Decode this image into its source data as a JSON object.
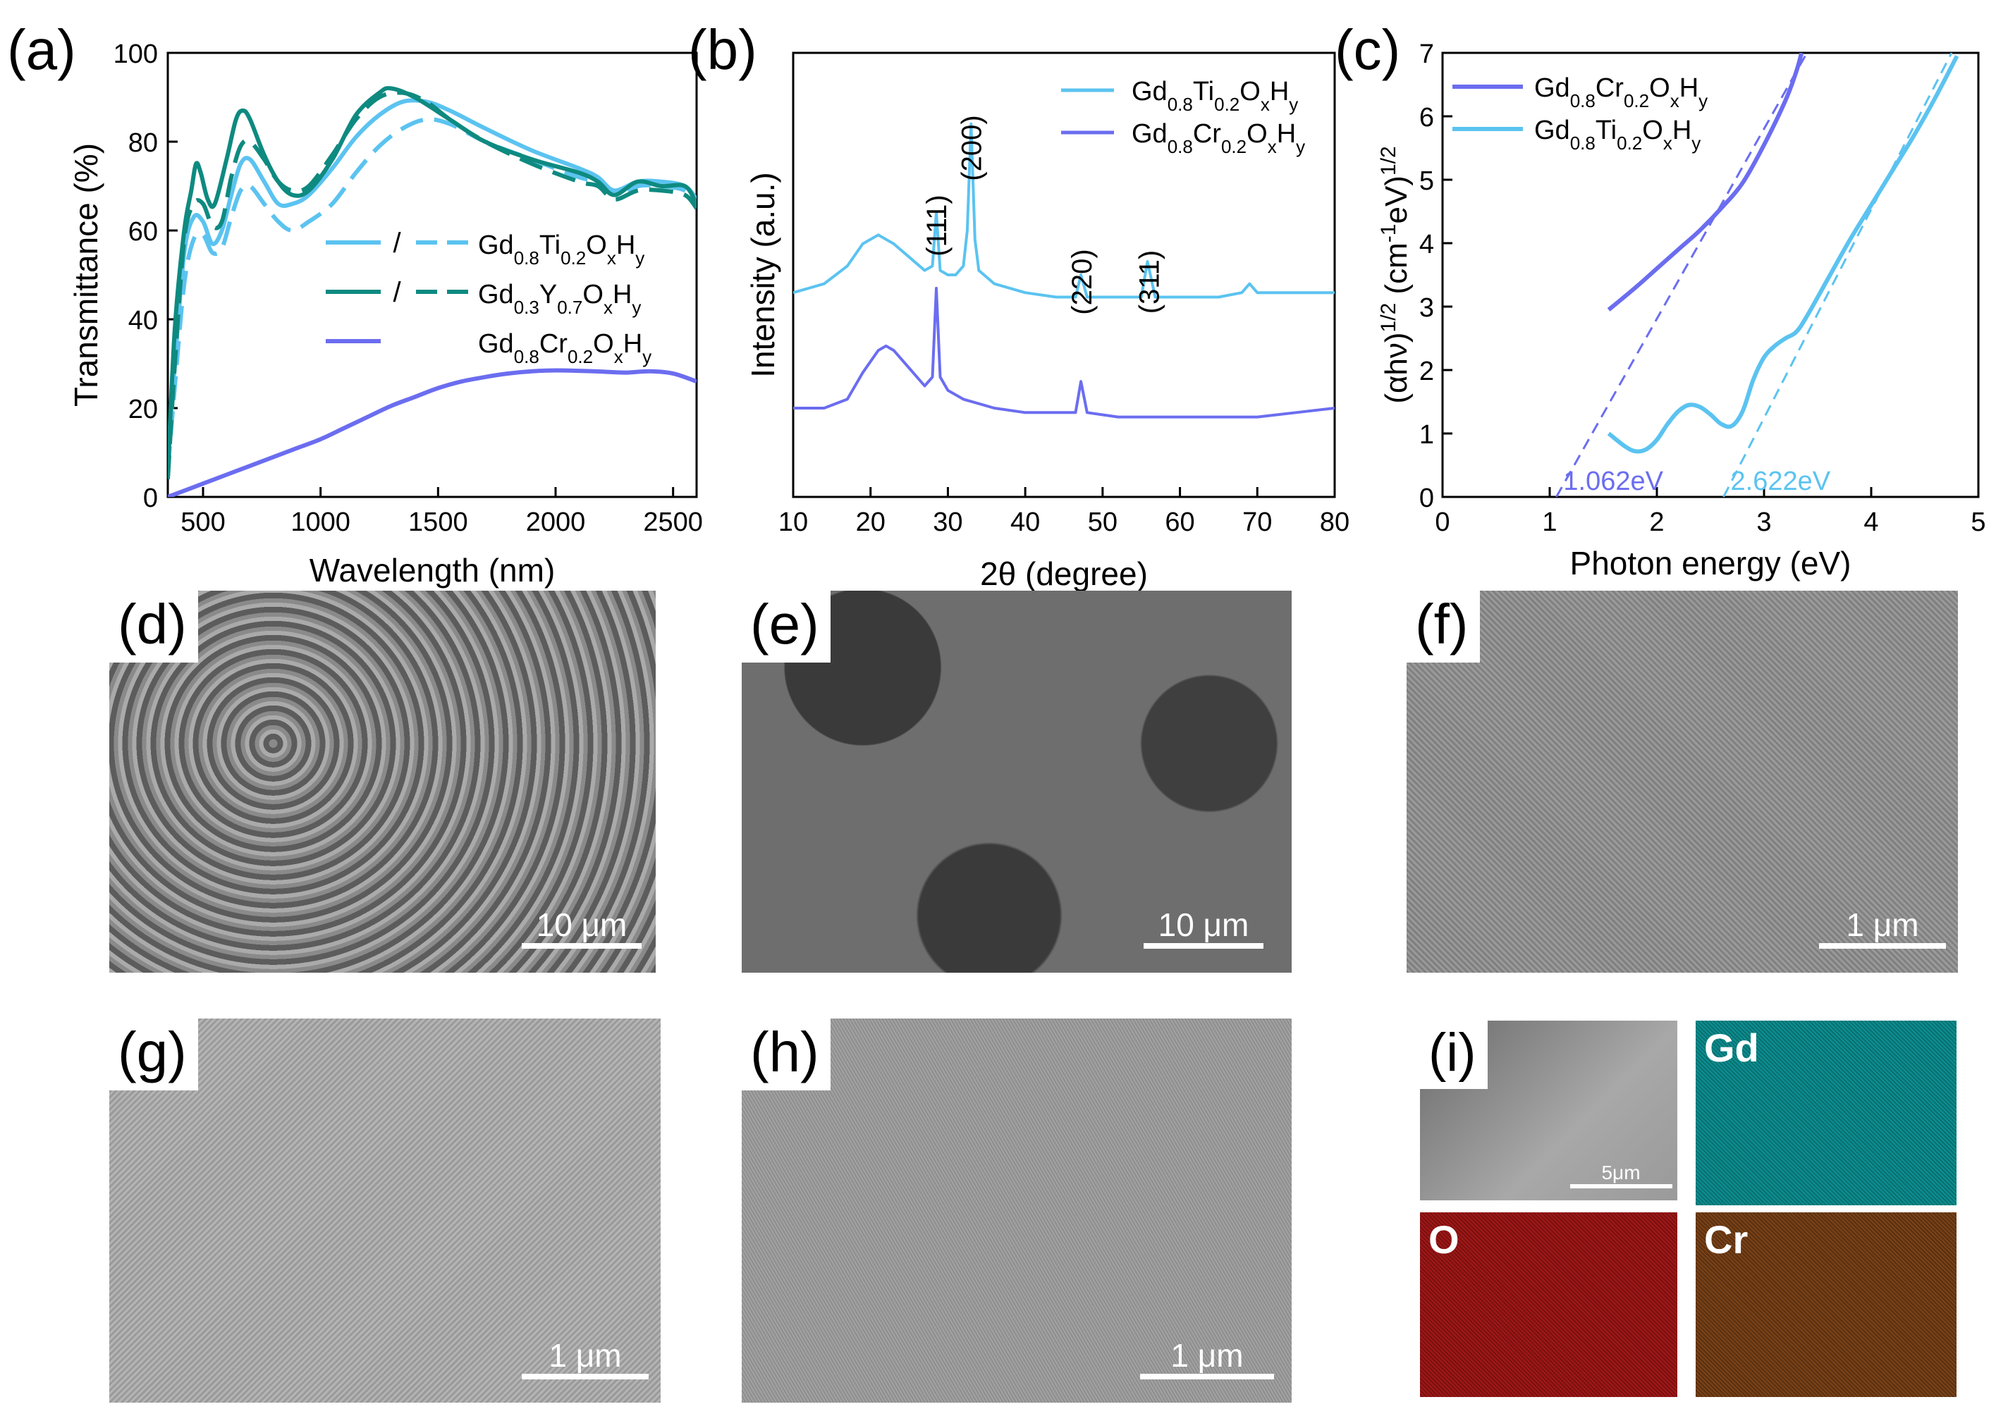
{
  "colors": {
    "light_blue": "#5bc3f0",
    "teal": "#0e8a80",
    "purple": "#6b6df0"
  },
  "panels": {
    "a": {
      "label": "(a)"
    },
    "b": {
      "label": "(b)"
    },
    "c": {
      "label": "(c)"
    },
    "d": {
      "label": "(d)",
      "scale": "10 μm"
    },
    "e": {
      "label": "(e)",
      "scale": "10 μm"
    },
    "f": {
      "label": "(f)",
      "scale": "1 μm"
    },
    "g": {
      "label": "(g)",
      "scale": "1 μm"
    },
    "h": {
      "label": "(h)",
      "scale": "1 μm"
    },
    "i": {
      "label": "(i)",
      "scale": "5μm",
      "maps": [
        "Gd",
        "O",
        "Cr"
      ]
    }
  },
  "chart_data": [
    {
      "id": "a",
      "type": "line",
      "xlabel": "Wavelength (nm)",
      "ylabel": "Transmittance (%)",
      "xlim": [
        350,
        2600
      ],
      "ylim": [
        0,
        100
      ],
      "xticks": [
        "500",
        "1000",
        "1500",
        "2000",
        "2500"
      ],
      "yticks": [
        "0",
        "20",
        "40",
        "60",
        "80",
        "100"
      ],
      "legend": [
        {
          "sub_sample": "Gd0.8Ti0.2OxHy",
          "slash": "/",
          "color": "light_blue"
        },
        {
          "sub_sample": "Gd0.3Y0.7OxHy",
          "slash": "/",
          "color": "teal"
        },
        {
          "sub_sample": "Gd0.8Cr0.2OxHy",
          "color": "purple"
        }
      ],
      "series": [
        {
          "name": "Gd0.8Ti0.2OxHy (solid)",
          "color": "light_blue",
          "dash": false,
          "x": [
            350,
            380,
            420,
            460,
            500,
            540,
            580,
            620,
            660,
            700,
            760,
            820,
            880,
            950,
            1050,
            1150,
            1250,
            1350,
            1450,
            1550,
            1700,
            1900,
            2100,
            2180,
            2250,
            2350,
            2450,
            2550,
            2600
          ],
          "y": [
            8,
            30,
            55,
            63,
            62,
            57,
            60,
            68,
            75,
            76,
            71,
            66,
            66,
            68,
            74,
            81,
            86,
            89,
            89,
            87,
            83,
            78,
            74,
            72,
            69,
            71,
            71,
            70,
            67
          ]
        },
        {
          "name": "Gd0.8Ti0.2OxHy (dashed)",
          "color": "light_blue",
          "dash": true,
          "x": [
            350,
            380,
            420,
            460,
            500,
            540,
            580,
            620,
            660,
            700,
            760,
            820,
            880,
            950,
            1050,
            1150,
            1250,
            1350,
            1450,
            1550,
            1700,
            1900,
            2100,
            2180,
            2250,
            2350,
            2450,
            2550,
            2600
          ],
          "y": [
            6,
            25,
            48,
            58,
            59,
            55,
            56,
            63,
            69,
            70,
            66,
            62,
            60,
            62,
            66,
            73,
            79,
            83,
            85,
            84,
            80,
            76,
            72,
            71,
            68,
            70,
            70,
            69,
            66
          ]
        },
        {
          "name": "Gd0.3Y0.7OxHy (solid)",
          "color": "teal",
          "dash": false,
          "x": [
            350,
            380,
            420,
            450,
            470,
            490,
            520,
            550,
            600,
            640,
            670,
            700,
            760,
            820,
            880,
            950,
            1050,
            1150,
            1250,
            1300,
            1400,
            1550,
            1700,
            1900,
            2100,
            2180,
            2250,
            2350,
            2450,
            2550,
            2600
          ],
          "y": [
            5,
            38,
            60,
            69,
            75,
            73,
            67,
            66,
            76,
            85,
            87,
            85,
            77,
            71,
            68,
            69,
            76,
            86,
            91,
            92,
            90,
            85,
            80,
            76,
            73,
            71,
            68,
            71,
            70,
            70,
            66
          ]
        },
        {
          "name": "Gd0.3Y0.7OxHy (dashed)",
          "color": "teal",
          "dash": true,
          "x": [
            350,
            380,
            420,
            460,
            500,
            540,
            580,
            620,
            660,
            700,
            760,
            820,
            880,
            950,
            1050,
            1150,
            1250,
            1350,
            1450,
            1550,
            1700,
            1900,
            2100,
            2180,
            2250,
            2350,
            2450,
            2550,
            2600
          ],
          "y": [
            4,
            30,
            58,
            66,
            66,
            61,
            62,
            72,
            79,
            80,
            76,
            71,
            69,
            70,
            77,
            85,
            90,
            91,
            89,
            85,
            80,
            75,
            71,
            70,
            67,
            69,
            69,
            68,
            65
          ]
        },
        {
          "name": "Gd0.8Cr0.2OxHy",
          "color": "purple",
          "dash": false,
          "x": [
            350,
            400,
            500,
            600,
            700,
            800,
            900,
            1000,
            1100,
            1200,
            1300,
            1400,
            1500,
            1600,
            1700,
            1800,
            1900,
            2000,
            2100,
            2200,
            2300,
            2400,
            2500,
            2600
          ],
          "y": [
            0,
            1,
            3,
            5,
            7,
            9,
            11,
            13,
            15.5,
            18,
            20.5,
            22.5,
            24.5,
            26,
            27,
            27.8,
            28.3,
            28.5,
            28.4,
            28.2,
            28,
            28.3,
            27.8,
            26
          ]
        }
      ]
    },
    {
      "id": "b",
      "type": "line",
      "xlabel": "2θ (degree)",
      "ylabel": "Intensity (a.u.)",
      "xlim": [
        10,
        80
      ],
      "ylim": [
        0,
        100
      ],
      "xticks": [
        "10",
        "20",
        "30",
        "40",
        "50",
        "60",
        "70",
        "80"
      ],
      "peak_labels": [
        {
          "text": "(111)",
          "x": 28.5
        },
        {
          "text": "(200)",
          "x": 33.0
        },
        {
          "text": "(220)",
          "x": 47.3
        },
        {
          "text": "(311)",
          "x": 56.0
        }
      ],
      "legend": [
        {
          "sub_sample": "Gd0.8Ti0.2OxHy",
          "color": "light_blue"
        },
        {
          "sub_sample": "Gd0.8Cr0.2OxHy",
          "color": "purple"
        }
      ],
      "series": [
        {
          "name": "Gd0.8Ti0.2OxHy",
          "color": "light_blue",
          "x": [
            10,
            14,
            17,
            19,
            21,
            23,
            25,
            27,
            28,
            28.5,
            29,
            30,
            31,
            32,
            32.5,
            33,
            33.5,
            34,
            36,
            40,
            44,
            46.5,
            47.2,
            48,
            52,
            55,
            55.8,
            56.8,
            60,
            65,
            68,
            69,
            70,
            75,
            80
          ],
          "y": [
            46,
            48,
            52,
            57,
            59,
            57,
            54,
            51,
            52,
            64,
            51,
            50,
            50,
            52,
            60,
            84,
            58,
            51,
            48,
            46,
            45,
            45,
            50,
            45,
            45,
            45,
            53,
            45,
            45,
            45,
            46,
            48,
            46,
            46,
            46
          ]
        },
        {
          "name": "Gd0.8Cr0.2OxHy",
          "color": "purple",
          "x": [
            10,
            14,
            17,
            19,
            21,
            22,
            23,
            25,
            27,
            28,
            28.5,
            29,
            30,
            32,
            36,
            40,
            44,
            46.5,
            47.2,
            48,
            52,
            55,
            60,
            65,
            70,
            75,
            80
          ],
          "y": [
            20,
            20,
            22,
            28,
            33,
            34,
            33,
            29,
            25,
            27,
            47,
            27,
            24,
            22,
            20,
            19,
            19,
            19,
            26,
            19,
            18,
            18,
            18,
            18,
            18,
            19,
            20
          ]
        }
      ]
    },
    {
      "id": "c",
      "type": "line",
      "xlabel": "Photon energy (eV)",
      "ylabel_text": "(αhν)^1/2 (cm^-1eV)^1/2",
      "xlim": [
        0,
        5
      ],
      "ylim": [
        0,
        7
      ],
      "xticks": [
        "0",
        "1",
        "2",
        "3",
        "4",
        "5"
      ],
      "yticks": [
        "0",
        "1",
        "2",
        "3",
        "4",
        "5",
        "6",
        "7"
      ],
      "legend": [
        {
          "sub_sample": "Gd0.8Cr0.2OxHy",
          "color": "purple"
        },
        {
          "sub_sample": "Gd0.8Ti0.2OxHy",
          "color": "light_blue"
        }
      ],
      "annotations": [
        {
          "text": "1.062eV",
          "x": 1.062,
          "color": "purple"
        },
        {
          "text": "2.622eV",
          "x": 2.622,
          "color": "light_blue"
        }
      ],
      "fit_lines": [
        {
          "color": "purple",
          "x": [
            1.062,
            3.4
          ],
          "y": [
            0,
            7
          ]
        },
        {
          "color": "light_blue",
          "x": [
            2.622,
            4.75
          ],
          "y": [
            0,
            7
          ]
        }
      ],
      "series": [
        {
          "name": "Gd0.8Cr0.2OxHy",
          "color": "purple",
          "x": [
            1.55,
            1.8,
            2.0,
            2.2,
            2.4,
            2.6,
            2.8,
            3.0,
            3.2,
            3.3,
            3.35
          ],
          "y": [
            2.95,
            3.3,
            3.6,
            3.9,
            4.2,
            4.55,
            4.95,
            5.55,
            6.25,
            6.7,
            7.0
          ]
        },
        {
          "name": "Gd0.8Ti0.2OxHy",
          "color": "light_blue",
          "x": [
            1.55,
            1.7,
            1.8,
            1.9,
            2.0,
            2.1,
            2.2,
            2.3,
            2.4,
            2.5,
            2.6,
            2.7,
            2.8,
            2.9,
            3.0,
            3.1,
            3.2,
            3.3,
            3.4,
            3.6,
            3.8,
            4.0,
            4.2,
            4.4,
            4.6,
            4.8
          ],
          "y": [
            1.0,
            0.8,
            0.72,
            0.75,
            0.9,
            1.15,
            1.35,
            1.45,
            1.42,
            1.3,
            1.15,
            1.12,
            1.35,
            1.85,
            2.2,
            2.38,
            2.5,
            2.6,
            2.85,
            3.45,
            4.05,
            4.6,
            5.15,
            5.7,
            6.3,
            6.95
          ]
        }
      ]
    }
  ]
}
